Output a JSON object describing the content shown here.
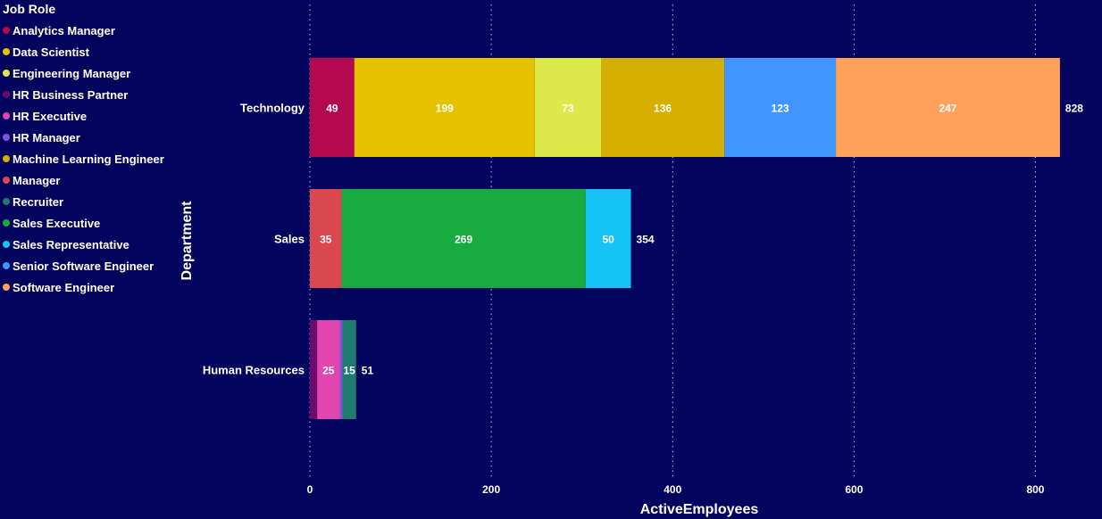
{
  "chart_data": {
    "type": "bar",
    "orientation": "horizontal",
    "stacked": true,
    "xlabel": "ActiveEmployees",
    "ylabel": "Department",
    "xlim": [
      0,
      850
    ],
    "xticks": [
      0,
      200,
      400,
      600,
      800
    ],
    "grid": "vertical-dotted",
    "legend": {
      "title": "Job Role",
      "placement": "top-left"
    },
    "categories": [
      "Technology",
      "Sales",
      "Human Resources"
    ],
    "roles": [
      {
        "name": "Analytics Manager",
        "color": "#b5094f"
      },
      {
        "name": "Data Scientist",
        "color": "#e6c200"
      },
      {
        "name": "Engineering Manager",
        "color": "#dde84a"
      },
      {
        "name": "HR Business Partner",
        "color": "#6b0b6e"
      },
      {
        "name": "HR Executive",
        "color": "#e045b0"
      },
      {
        "name": "HR Manager",
        "color": "#7f56d9"
      },
      {
        "name": "Machine Learning Engineer",
        "color": "#d4ae00"
      },
      {
        "name": "Manager",
        "color": "#d9474f"
      },
      {
        "name": "Recruiter",
        "color": "#1e7b6e"
      },
      {
        "name": "Sales Executive",
        "color": "#1aab40"
      },
      {
        "name": "Sales Representative",
        "color": "#15c3f5"
      },
      {
        "name": "Senior Software Engineer",
        "color": "#4095ff"
      },
      {
        "name": "Software Engineer",
        "color": "#ffa15a"
      }
    ],
    "stacks": [
      {
        "category": "Technology",
        "total": 828,
        "segments": [
          {
            "role": "Analytics Manager",
            "value": 49,
            "label": "49"
          },
          {
            "role": "Data Scientist",
            "value": 199,
            "label": "199"
          },
          {
            "role": "Engineering Manager",
            "value": 73,
            "label": "73"
          },
          {
            "role": "Machine Learning Engineer",
            "value": 136,
            "label": "136"
          },
          {
            "role": "Senior Software Engineer",
            "value": 123,
            "label": "123"
          },
          {
            "role": "Software Engineer",
            "value": 247,
            "label": "247"
          }
        ]
      },
      {
        "category": "Sales",
        "total": 354,
        "segments": [
          {
            "role": "Manager",
            "value": 35,
            "label": "35"
          },
          {
            "role": "Sales Executive",
            "value": 269,
            "label": "269"
          },
          {
            "role": "Sales Representative",
            "value": 50,
            "label": "50"
          }
        ]
      },
      {
        "category": "Human Resources",
        "total": 51,
        "segments": [
          {
            "role": "HR Business Partner",
            "value": 8,
            "label": ""
          },
          {
            "role": "HR Executive",
            "value": 25,
            "label": "25"
          },
          {
            "role": "HR Manager",
            "value": 3,
            "label": ""
          },
          {
            "role": "Recruiter",
            "value": 15,
            "label": "15"
          }
        ]
      }
    ]
  }
}
